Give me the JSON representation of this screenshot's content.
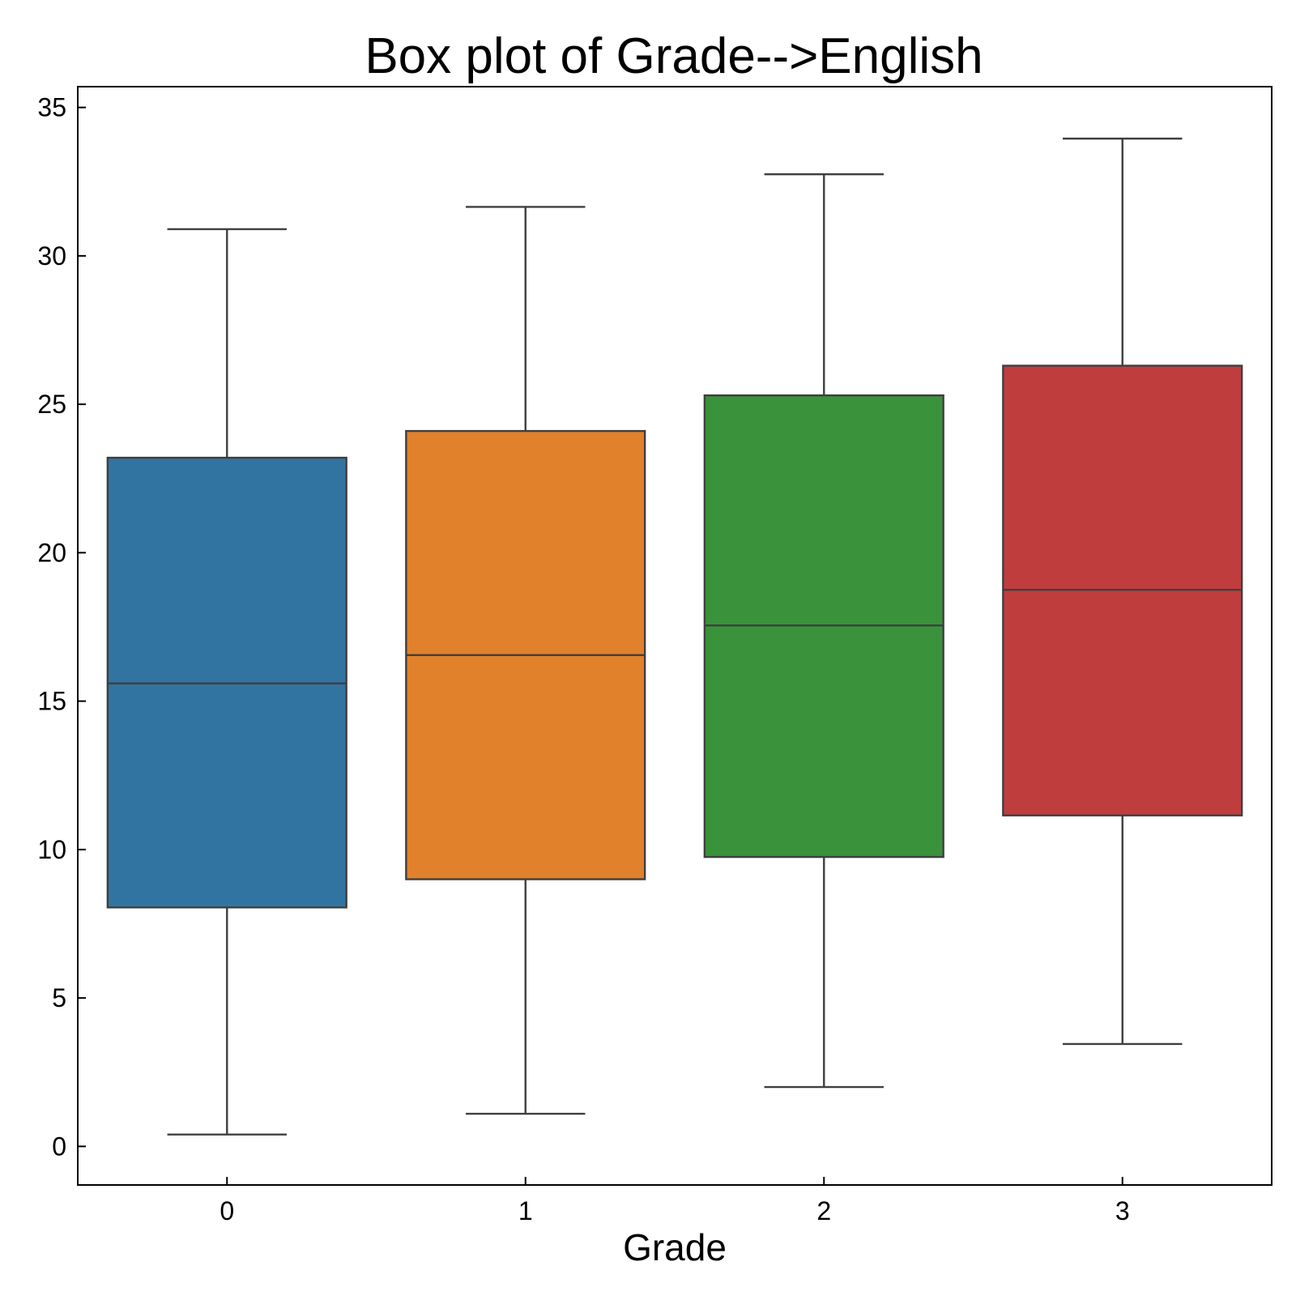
{
  "chart_data": {
    "type": "box",
    "title": "Box plot of Grade-->English",
    "xlabel": "Grade",
    "ylabel": "",
    "categories": [
      "0",
      "1",
      "2",
      "3"
    ],
    "colors": [
      "#3274a1",
      "#e1812c",
      "#3a923a",
      "#c03d3e"
    ],
    "boxes": [
      {
        "category": "0",
        "whisker_low": 0.4,
        "q1": 8.05,
        "median": 15.6,
        "q3": 23.2,
        "whisker_high": 30.9
      },
      {
        "category": "1",
        "whisker_low": 1.1,
        "q1": 9.0,
        "median": 16.55,
        "q3": 24.1,
        "whisker_high": 31.65
      },
      {
        "category": "2",
        "whisker_low": 2.0,
        "q1": 9.75,
        "median": 17.55,
        "q3": 25.3,
        "whisker_high": 32.75
      },
      {
        "category": "3",
        "whisker_low": 3.45,
        "q1": 11.15,
        "median": 18.75,
        "q3": 26.3,
        "whisker_high": 33.95
      }
    ],
    "ylim": [
      -1.3,
      35.7
    ],
    "yticks": [
      0,
      5,
      10,
      15,
      20,
      25,
      30,
      35
    ],
    "ytick_labels": [
      "0",
      "5",
      "10",
      "15",
      "20",
      "25",
      "30",
      "35"
    ],
    "grid": false,
    "legend": "none"
  }
}
